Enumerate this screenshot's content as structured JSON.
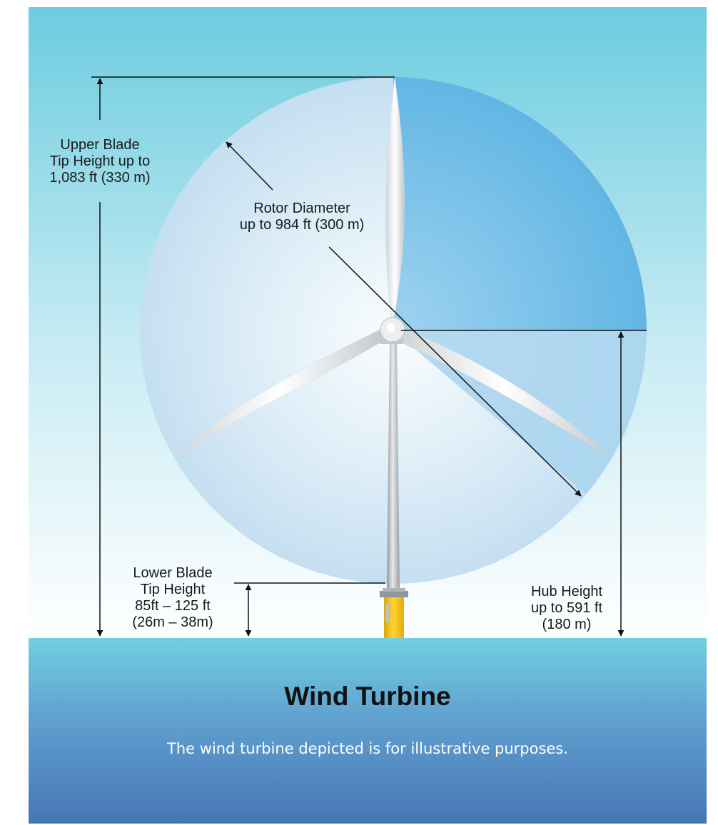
{
  "title": "Wind Turbine",
  "caption": "The wind turbine depicted is for illustrative purposes.",
  "labels": {
    "upper_blade": [
      "Upper Blade",
      "Tip Height up to",
      "1,083 ft (330 m)"
    ],
    "rotor_diameter": [
      "Rotor Diameter",
      "up to 984 ft (300 m)"
    ],
    "lower_blade": [
      "Lower Blade",
      "Tip Height",
      "85ft – 125 ft",
      "(26m – 38m)"
    ],
    "hub_height": [
      "Hub Height",
      "up to 591 ft",
      "(180 m)"
    ]
  },
  "colors": {
    "sky_top": "#6cccdf",
    "sky_bottom": "#ffffff",
    "rotor_disc": "#cfe6f4",
    "rotor_quadrant": "#5cb4e2",
    "sea_top": "#70cfe0",
    "sea_bottom": "#4676b4",
    "tower": "#b8bcc0",
    "foundation": "#f2c318",
    "dimension_line": "#111111"
  }
}
